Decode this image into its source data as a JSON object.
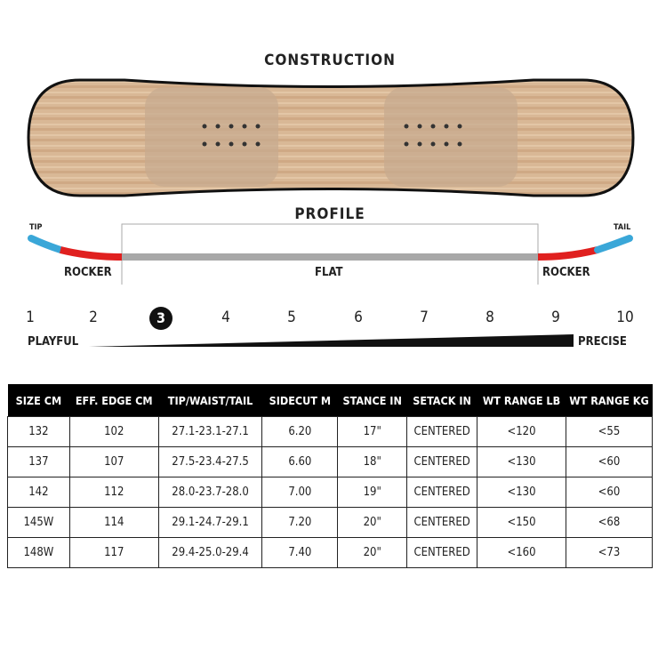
{
  "construction": {
    "title": "CONSTRUCTION"
  },
  "profile": {
    "title": "PROFILE",
    "tip": "TIP",
    "tail": "TAIL",
    "left_zone": "ROCKER",
    "center_zone": "FLAT",
    "right_zone": "ROCKER",
    "colors": {
      "tip": "#3aa7d8",
      "rocker": "#e0201f",
      "flat": "#a8a8a8"
    }
  },
  "scale": {
    "numbers": [
      "1",
      "2",
      "3",
      "4",
      "5",
      "6",
      "7",
      "8",
      "9",
      "10"
    ],
    "selected": 3,
    "left_label": "PLAYFUL",
    "right_label": "PRECISE"
  },
  "table": {
    "headers": [
      "SIZE CM",
      "EFF. EDGE CM",
      "TIP/WAIST/TAIL",
      "SIDECUT M",
      "STANCE IN",
      "SETACK IN",
      "WT RANGE LB",
      "WT RANGE KG"
    ],
    "rows": [
      [
        "132",
        "102",
        "27.1-23.1-27.1",
        "6.20",
        "17\"",
        "CENTERED",
        "<120",
        "<55"
      ],
      [
        "137",
        "107",
        "27.5-23.4-27.5",
        "6.60",
        "18\"",
        "CENTERED",
        "<130",
        "<60"
      ],
      [
        "142",
        "112",
        "28.0-23.7-28.0",
        "7.00",
        "19\"",
        "CENTERED",
        "<130",
        "<60"
      ],
      [
        "145W",
        "114",
        "29.1-24.7-29.1",
        "7.20",
        "20\"",
        "CENTERED",
        "<150",
        "<68"
      ],
      [
        "148W",
        "117",
        "29.4-25.0-29.4",
        "7.40",
        "20\"",
        "CENTERED",
        "<160",
        "<73"
      ]
    ]
  }
}
